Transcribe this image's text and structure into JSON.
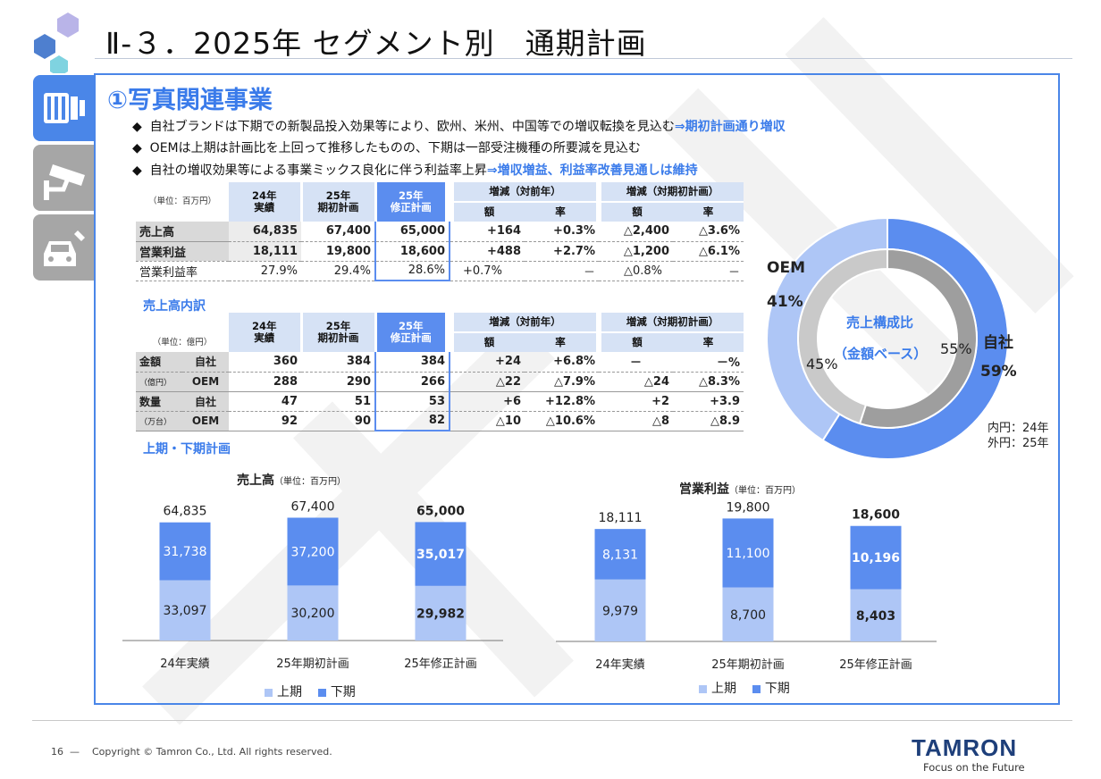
{
  "header": {
    "title": "Ⅱ-３．2025年 セグメント別　通期計画"
  },
  "section": {
    "title": "①写真関連事業",
    "bullets": [
      {
        "text": "自社ブランドは下期での新製品投入効果等により、欧州、米州、中国等での増収転換を見込む",
        "highlight": "⇒期初計画通り増収"
      },
      {
        "text": "OEMは上期は計画比を上回って推移したものの、下期は一部受注機種の所要減を見込む",
        "highlight": ""
      },
      {
        "text": "自社の増収効果等による事業ミックス良化に伴う利益率上昇",
        "highlight": "⇒増収増益、利益率改善見通しは維持"
      }
    ]
  },
  "table1": {
    "unit": "（単位：百万円）",
    "headers": {
      "c1": "24年\n実績",
      "c2": "25年\n期初計画",
      "c3": "25年\n修正計画",
      "yoy": "増減（対前年）",
      "vsplan": "増減（対期初計画）",
      "amt": "額",
      "rate": "率"
    },
    "rows": [
      {
        "label": "売上高",
        "v": [
          "64,835",
          "67,400",
          "65,000",
          "+164",
          "+0.3%",
          "△2,400",
          "△3.6%"
        ]
      },
      {
        "label": "営業利益",
        "v": [
          "18,111",
          "19,800",
          "18,600",
          "+488",
          "+2.7%",
          "△1,200",
          "△6.1%"
        ]
      },
      {
        "label": "営業利益率",
        "v": [
          "27.9%",
          "29.4%",
          "28.6%",
          "+0.7%",
          "－",
          "△0.8%",
          "－"
        ]
      }
    ]
  },
  "table2": {
    "title": "売上高内訳",
    "unit": "（単位：億円）",
    "g1": "金額",
    "g1unit": "（億円）",
    "g2": "数量",
    "g2unit": "（万台）",
    "rows": [
      {
        "sub": "自社",
        "v": [
          "360",
          "384",
          "384",
          "+24",
          "+6.8%",
          "－",
          "－%"
        ]
      },
      {
        "sub": "OEM",
        "v": [
          "288",
          "290",
          "266",
          "△22",
          "△7.9%",
          "△24",
          "△8.3%"
        ]
      },
      {
        "sub": "自社",
        "v": [
          "47",
          "51",
          "53",
          "+6",
          "+12.8%",
          "+2",
          "+3.9"
        ]
      },
      {
        "sub": "OEM",
        "v": [
          "92",
          "90",
          "82",
          "△10",
          "△10.6%",
          "△8",
          "△8.9"
        ]
      }
    ]
  },
  "donut": {
    "center1": "売上構成比",
    "center2": "（金額ベース）",
    "oem_label": "OEM",
    "oem_outer": "41%",
    "own_label": "自社",
    "own_outer": "59%",
    "inner_oem": "45%",
    "inner_own": "55%",
    "note1": "内円：24年",
    "note2": "外円：25年",
    "outer_own_share": 0.59,
    "inner_own_share": 0.55,
    "colors": {
      "own_outer": "#5b8def",
      "oem_outer": "#aec6f6",
      "own_inner": "#9e9e9e",
      "oem_inner": "#c9c9c9"
    }
  },
  "chart_title": "上期・下期計画",
  "chart_data": [
    {
      "type": "bar",
      "title": "売上高",
      "unit": "（単位：百万円）",
      "categories": [
        "24年実績",
        "25年期初計画",
        "25年修正計画"
      ],
      "series": [
        {
          "name": "上期",
          "values": [
            33097,
            30200,
            29982
          ],
          "labels": [
            "33,097",
            "30,200",
            "29,982"
          ]
        },
        {
          "name": "下期",
          "values": [
            31738,
            37200,
            35017
          ],
          "labels": [
            "31,738",
            "37,200",
            "35,017"
          ]
        }
      ],
      "totals": [
        "64,835",
        "67,400",
        "65,000"
      ],
      "stacked": true
    },
    {
      "type": "bar",
      "title": "営業利益",
      "unit": "（単位：百万円）",
      "categories": [
        "24年実績",
        "25年期初計画",
        "25年修正計画"
      ],
      "series": [
        {
          "name": "上期",
          "values": [
            9979,
            8700,
            8403
          ],
          "labels": [
            "9,979",
            "8,700",
            "8,403"
          ]
        },
        {
          "name": "下期",
          "values": [
            8131,
            11100,
            10196
          ],
          "labels": [
            "8,131",
            "11,100",
            "10,196"
          ]
        }
      ],
      "totals": [
        "18,111",
        "19,800",
        "18,600"
      ],
      "stacked": true
    }
  ],
  "colors": {
    "first_half": "#aec6f6",
    "second_half": "#5b8def",
    "accent": "#3a7bea"
  },
  "footer": {
    "page": "16",
    "copyright": "Copyright © Tamron Co., Ltd. All rights reserved.",
    "logo": "TAMRON",
    "tagline": "Focus on the Future"
  }
}
